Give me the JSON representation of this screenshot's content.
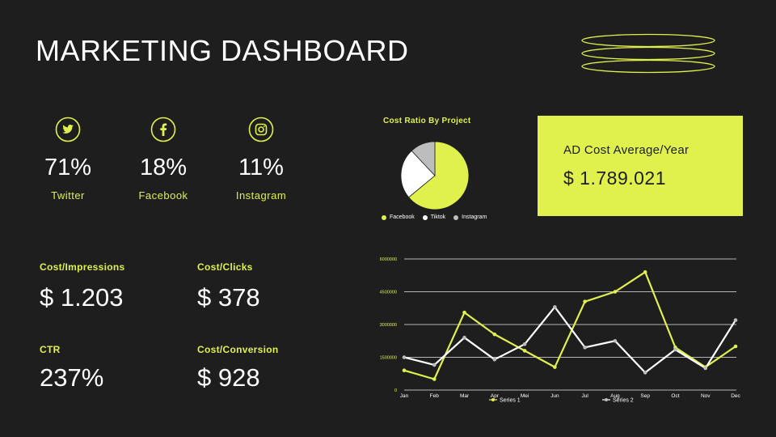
{
  "page": {
    "title": "MARKETING DASHBOARD",
    "accent_color": "#e0f04c",
    "background_color": "#1e1e1e"
  },
  "social": [
    {
      "icon": "twitter-icon",
      "percent": "71%",
      "label": "Twitter"
    },
    {
      "icon": "facebook-icon",
      "percent": "18%",
      "label": "Facebook"
    },
    {
      "icon": "instagram-icon",
      "percent": "11%",
      "label": "Instagram"
    }
  ],
  "metrics": [
    {
      "label": "Cost/Impressions",
      "value": "$ 1.203"
    },
    {
      "label": "Cost/Clicks",
      "value": "$ 378"
    },
    {
      "label": "CTR",
      "value": "237%"
    },
    {
      "label": "Cost/Conversion",
      "value": "$ 928"
    }
  ],
  "ad_cost": {
    "label": "AD Cost Average/Year",
    "value": "$ 1.789.021"
  },
  "chart_data": [
    {
      "type": "pie",
      "title": "Cost Ratio By Project",
      "legend_position": "bottom",
      "slices": [
        {
          "name": "Facebook",
          "value": 64,
          "color": "#e0f04c"
        },
        {
          "name": "Tiktok",
          "value": 24,
          "color": "#ffffff"
        },
        {
          "name": "Instagram",
          "value": 12,
          "color": "#bdbdbd"
        }
      ]
    },
    {
      "type": "line",
      "categories": [
        "Jan",
        "Feb",
        "Mar",
        "Apr",
        "Mei",
        "Jun",
        "Jul",
        "Aug",
        "Sep",
        "Oct",
        "Nov",
        "Dec"
      ],
      "y_ticks": [
        "0",
        "1500000",
        "3000000",
        "4500000",
        "6000000"
      ],
      "ylim": [
        0,
        6000000
      ],
      "grid": true,
      "legend_position": "bottom",
      "series": [
        {
          "name": "Series 1",
          "color": "#e0f04c",
          "values": [
            900000,
            500000,
            3550000,
            2550000,
            1800000,
            1050000,
            4050000,
            4500000,
            5400000,
            1950000,
            1050000,
            2000000
          ]
        },
        {
          "name": "Series 2",
          "color": "#ffffff",
          "values": [
            1500000,
            1150000,
            2400000,
            1400000,
            2100000,
            3800000,
            1950000,
            2250000,
            800000,
            1850000,
            1000000,
            3200000
          ]
        }
      ]
    }
  ]
}
